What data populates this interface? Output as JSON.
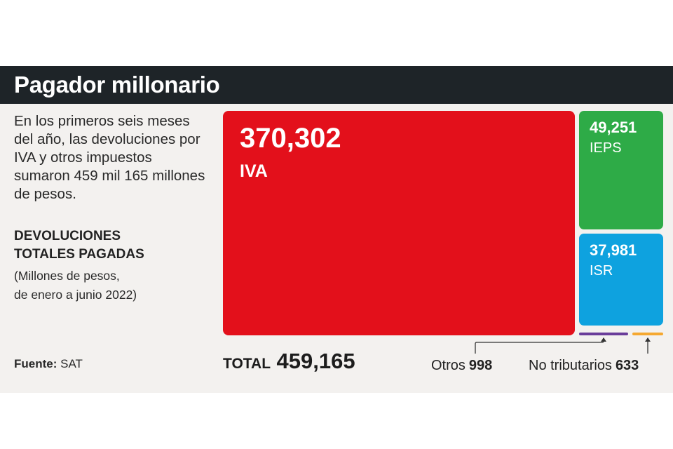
{
  "header": {
    "title": "Pagador millonario"
  },
  "intro": {
    "text": "En los primeros seis meses del año, las devoluciones por IVA y otros impuestos sumaron 459 mil 165 millones de pesos."
  },
  "subtitle": {
    "line1": "DEVOLUCIONES",
    "line2": "TOTALES PAGADAS"
  },
  "note": {
    "line1": "(Millones de pesos,",
    "line2": "de enero a junio 2022)"
  },
  "source": {
    "label": "Fuente:",
    "value": "SAT"
  },
  "total": {
    "label": "TOTAL",
    "value": "459,165"
  },
  "chart_data": {
    "type": "treemap",
    "unit": "Millones de pesos",
    "total": 459165,
    "items": [
      {
        "name": "IVA",
        "value": 370302,
        "value_label": "370,302",
        "color": "#e3101b"
      },
      {
        "name": "IEPS",
        "value": 49251,
        "value_label": "49,251",
        "color": "#2eab47"
      },
      {
        "name": "ISR",
        "value": 37981,
        "value_label": "37,981",
        "color": "#0ea2df"
      },
      {
        "name": "Otros",
        "value": 998,
        "value_label": "998",
        "color": "#6a3d9a"
      },
      {
        "name": "No tributarios",
        "value": 633,
        "value_label": "633",
        "color": "#f5a830"
      }
    ]
  }
}
